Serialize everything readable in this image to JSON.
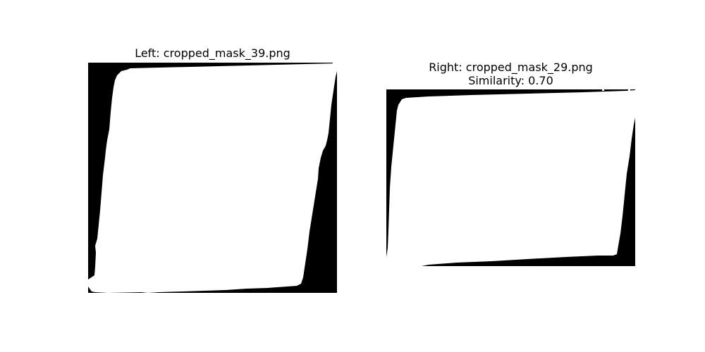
{
  "figure": {
    "left": {
      "title": "Left: cropped_mask_39.png",
      "mask_image": "binary-mask-quadrilateral"
    },
    "right": {
      "title_line1": "Right: cropped_mask_29.png",
      "title_line2": "Similarity: 0.70",
      "mask_image": "binary-mask-quadrilateral"
    },
    "colors": {
      "mask_foreground": "#ffffff",
      "mask_background": "#000000",
      "text": "#000000"
    }
  }
}
